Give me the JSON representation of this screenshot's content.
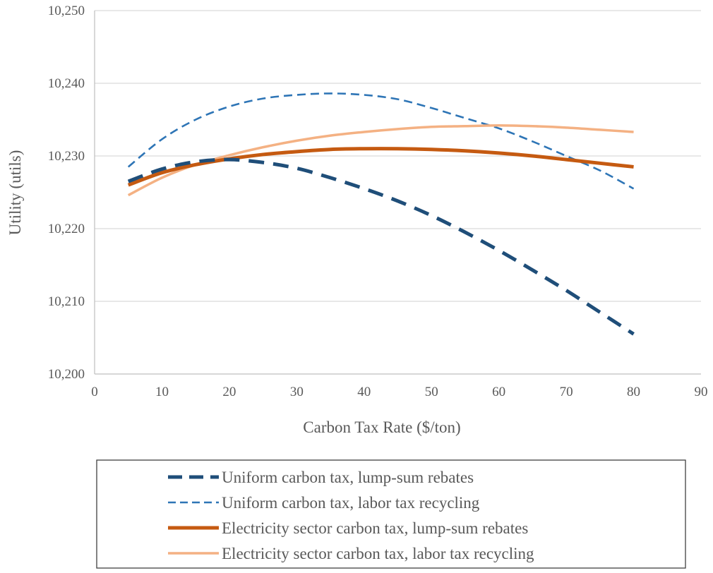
{
  "chart_data": {
    "type": "line",
    "title": "",
    "xlabel": "Carbon Tax Rate ($/ton)",
    "ylabel": "Utility (utils)",
    "xlim": [
      0,
      90
    ],
    "ylim": [
      10200,
      10250
    ],
    "x_ticks": [
      0,
      10,
      20,
      30,
      40,
      50,
      60,
      70,
      80,
      90
    ],
    "x_tick_labels": [
      "0",
      "10",
      "20",
      "30",
      "40",
      "50",
      "60",
      "70",
      "80",
      "90"
    ],
    "y_ticks": [
      10200,
      10210,
      10220,
      10230,
      10240,
      10250
    ],
    "y_tick_labels": [
      "10,200",
      "10,210",
      "10,220",
      "10,230",
      "10,240",
      "10,250"
    ],
    "grid": "horizontal",
    "legend_position": "bottom",
    "series": [
      {
        "name": "Uniform carbon tax, lump-sum rebates",
        "color": "#1f4e79",
        "style": "long-dash",
        "weight": "heavy",
        "x": [
          5,
          10,
          15,
          20,
          25,
          30,
          35,
          40,
          45,
          50,
          55,
          60,
          65,
          70,
          75,
          80
        ],
        "y": [
          10226.5,
          10228.2,
          10229.2,
          10229.5,
          10229.1,
          10228.3,
          10227.0,
          10225.5,
          10223.8,
          10221.8,
          10219.5,
          10217.0,
          10214.3,
          10211.5,
          10208.5,
          10205.5
        ]
      },
      {
        "name": "Uniform carbon tax, labor tax recycling",
        "color": "#2e75b6",
        "style": "short-dash",
        "weight": "light",
        "x": [
          5,
          10,
          15,
          20,
          25,
          30,
          35,
          40,
          45,
          50,
          55,
          60,
          65,
          70,
          75,
          80
        ],
        "y": [
          10228.5,
          10232.3,
          10235.0,
          10236.8,
          10237.9,
          10238.4,
          10238.6,
          10238.4,
          10237.8,
          10236.6,
          10235.2,
          10233.8,
          10232.0,
          10230.0,
          10228.0,
          10225.5
        ]
      },
      {
        "name": "Electricity sector carbon tax, lump-sum rebates",
        "color": "#c55a11",
        "style": "solid",
        "weight": "heavy",
        "x": [
          5,
          10,
          15,
          20,
          25,
          30,
          35,
          40,
          45,
          50,
          55,
          60,
          65,
          70,
          75,
          80
        ],
        "y": [
          10226.0,
          10227.7,
          10228.8,
          10229.6,
          10230.2,
          10230.6,
          10230.9,
          10231.0,
          10231.0,
          10230.9,
          10230.7,
          10230.4,
          10230.0,
          10229.5,
          10229.0,
          10228.5
        ]
      },
      {
        "name": "Electricity sector carbon tax, labor tax recycling",
        "color": "#f4b183",
        "style": "solid",
        "weight": "medium",
        "x": [
          5,
          10,
          15,
          20,
          25,
          30,
          35,
          40,
          45,
          50,
          55,
          60,
          65,
          70,
          75,
          80
        ],
        "y": [
          10224.6,
          10227.0,
          10228.8,
          10230.1,
          10231.2,
          10232.1,
          10232.8,
          10233.3,
          10233.7,
          10234.0,
          10234.1,
          10234.2,
          10234.1,
          10233.9,
          10233.6,
          10233.3
        ]
      }
    ]
  }
}
